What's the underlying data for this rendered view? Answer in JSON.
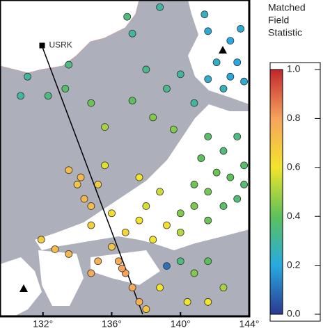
{
  "chart_data": {
    "type": "scatter",
    "colorbar_title": [
      "Matched",
      "Field",
      "Statistic"
    ],
    "station": {
      "name": "USRK",
      "lon": 131.95,
      "lat": 44.2
    },
    "xlim": [
      129.5,
      144
    ],
    "ylim": [
      32.9,
      46.1
    ],
    "xticks": [
      {
        "value": 132,
        "label": "132°"
      },
      {
        "value": 136,
        "label": "136°"
      },
      {
        "value": 140,
        "label": "140°"
      },
      {
        "value": 144,
        "label": "144°"
      }
    ],
    "clim": [
      0,
      1
    ],
    "cticks": [
      {
        "value": 0,
        "label": "0.0"
      },
      0.2,
      0.4,
      0.6,
      0.8,
      {
        "value": 1,
        "label": "1.0"
      }
    ],
    "colormap": [
      "#2b3990",
      "#27aae1",
      "#5cc15a",
      "#f2e52b",
      "#f7a35c",
      "#c1272d"
    ],
    "x": [
      141.6,
      142.9,
      143.5,
      142.1,
      142.9,
      143.7,
      142.5,
      141.4,
      143.3,
      141.6,
      136.9,
      138.8,
      137.2,
      133.5,
      131.1,
      130.7,
      132.3,
      133.3,
      134.8,
      135.6,
      138.0,
      139.2,
      140.0,
      138.4,
      137.2,
      140.8,
      139.6,
      141.6,
      142.5,
      143.3,
      143.7,
      142.9,
      142.1,
      141.2,
      141.6,
      143.3,
      142.5,
      140.8,
      141.6,
      140.0,
      143.7,
      140.8,
      135.6,
      137.6,
      138.8,
      139.2,
      137.6,
      136.8,
      138.4,
      140.0,
      136.0,
      134.8,
      138.0,
      133.5,
      134.0,
      134.4,
      134.8,
      135.2,
      134.2,
      136.4,
      136.8,
      137.2,
      137.6,
      138.0,
      136.6,
      136.0,
      135.2,
      134.8,
      131.9,
      132.7,
      133.5,
      139.2,
      140.0,
      140.8,
      141.6,
      142.5,
      138.8,
      140.4,
      141.6
    ],
    "y": [
      44.8,
      44.4,
      44.9,
      43.5,
      42.9,
      42.7,
      42.4,
      45.5,
      43.5,
      42.8,
      45.4,
      45.8,
      44.7,
      43.4,
      42.9,
      42.1,
      42.1,
      42.4,
      41.8,
      40.8,
      43.2,
      42.4,
      43.0,
      41.2,
      41.9,
      41.8,
      40.7,
      40.4,
      39.8,
      40.4,
      39.2,
      38.7,
      38.9,
      39.5,
      38.1,
      37.8,
      37.5,
      37.5,
      36.9,
      37.2,
      38.4,
      38.4,
      39.2,
      38.7,
      38.1,
      36.7,
      36.9,
      36.4,
      36.1,
      36.4,
      37.2,
      36.7,
      37.5,
      39.0,
      38.4,
      37.8,
      37.5,
      38.4,
      38.7,
      35.2,
      34.7,
      34.1,
      33.5,
      33.2,
      34.9,
      35.8,
      35.2,
      34.7,
      36.1,
      35.7,
      35.5,
      35.0,
      35.2,
      34.7,
      35.2,
      34.1,
      34.1,
      33.5,
      33.5
    ],
    "values": [
      0.22,
      0.2,
      0.22,
      0.24,
      0.2,
      0.22,
      0.25,
      0.25,
      0.2,
      0.23,
      0.35,
      0.3,
      0.3,
      0.35,
      0.3,
      0.3,
      0.35,
      0.38,
      0.42,
      0.5,
      0.33,
      0.33,
      0.3,
      0.45,
      0.4,
      0.3,
      0.45,
      0.38,
      0.36,
      0.35,
      0.38,
      0.4,
      0.42,
      0.4,
      0.43,
      0.36,
      0.38,
      0.44,
      0.42,
      0.45,
      0.37,
      0.42,
      0.58,
      0.6,
      0.55,
      0.62,
      0.6,
      0.65,
      0.6,
      0.52,
      0.62,
      0.66,
      0.56,
      0.72,
      0.7,
      0.74,
      0.72,
      0.68,
      0.73,
      0.78,
      0.8,
      0.78,
      0.76,
      0.7,
      0.8,
      0.7,
      0.76,
      0.78,
      0.68,
      0.72,
      0.74,
      0.1,
      0.35,
      0.45,
      0.4,
      0.5,
      0.6,
      0.6,
      0.6
    ]
  }
}
